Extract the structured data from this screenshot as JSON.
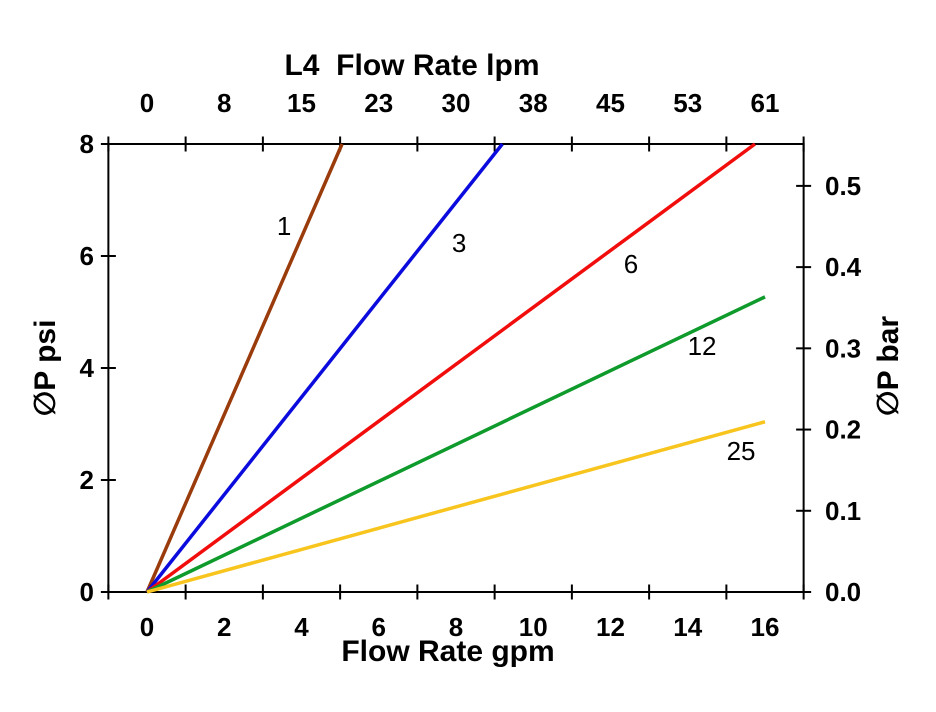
{
  "chart_data": {
    "type": "line",
    "title": "L4  Flow Rate lpm",
    "x_axis_top": {
      "label": "L4  Flow Rate lpm",
      "tick_labels": [
        "0",
        "8",
        "15",
        "23",
        "30",
        "38",
        "45",
        "53",
        "61"
      ],
      "tick_positions_gpm": [
        0,
        2,
        4,
        6,
        8,
        10,
        12,
        14,
        16
      ],
      "units": "lpm"
    },
    "x_axis_bottom": {
      "label": "Flow Rate gpm",
      "tick_labels": [
        "0",
        "2",
        "4",
        "6",
        "8",
        "10",
        "12",
        "14",
        "16"
      ],
      "tick_label_positions": [
        0,
        2,
        4,
        6,
        8,
        10,
        12,
        14,
        16
      ],
      "tick_marks": [
        -1,
        1,
        3,
        5,
        7,
        9,
        11,
        13,
        15,
        17
      ],
      "range": [
        -1,
        17
      ],
      "units": "gpm"
    },
    "y_axis_left": {
      "label": "∅P psi",
      "tick_labels": [
        "0",
        "2",
        "4",
        "6",
        "8"
      ],
      "tick_positions": [
        0,
        2,
        4,
        6,
        8
      ],
      "range": [
        0,
        8
      ],
      "units": "psi"
    },
    "y_axis_right": {
      "label": "∅P bar",
      "tick_labels": [
        "0.0",
        "0.1",
        "0.2",
        "0.3",
        "0.4",
        "0.5"
      ],
      "tick_positions_bar": [
        0,
        0.1,
        0.2,
        0.3,
        0.4,
        0.5
      ],
      "psi_per_bar": 14.5038,
      "units": "bar"
    },
    "grid": false,
    "legend": "inline-labels",
    "frame_color": "#000000",
    "background": "#FFFFFF",
    "series": [
      {
        "name": "1",
        "color": "#9A3B0B",
        "points_gpm_psi": [
          [
            0,
            0
          ],
          [
            5.05,
            8
          ]
        ],
        "label_at_gpm_psi": [
          3.55,
          6.54
        ]
      },
      {
        "name": "3",
        "color": "#0B0BDD",
        "points_gpm_psi": [
          [
            0,
            0
          ],
          [
            9.2,
            8
          ]
        ],
        "label_at_gpm_psi": [
          8.08,
          6.23
        ]
      },
      {
        "name": "6",
        "color": "#F20D0D",
        "points_gpm_psi": [
          [
            0,
            0
          ],
          [
            15.74,
            8
          ]
        ],
        "label_at_gpm_psi": [
          12.53,
          5.86
        ]
      },
      {
        "name": "12",
        "color": "#0E9B2B",
        "points_gpm_psi": [
          [
            0,
            0
          ],
          [
            16,
            5.27
          ]
        ],
        "label_at_gpm_psi": [
          14.37,
          4.39
        ]
      },
      {
        "name": "25",
        "color": "#F7C51D",
        "points_gpm_psi": [
          [
            0,
            0
          ],
          [
            16,
            3.04
          ]
        ],
        "label_at_gpm_psi": [
          15.38,
          2.52
        ]
      }
    ]
  }
}
